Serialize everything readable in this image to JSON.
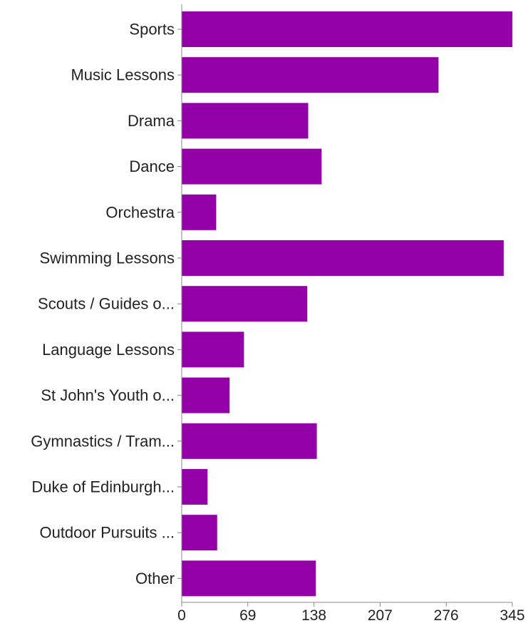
{
  "chart_data": {
    "type": "bar",
    "orientation": "horizontal",
    "categories": [
      "Sports",
      "Music Lessons",
      "Drama",
      "Dance",
      "Orchestra",
      "Swimming Lessons",
      "Scouts / Guides o...",
      "Language Lessons",
      "St John's Youth o...",
      "Gymnastics / Tram...",
      "Duke of Edinburgh...",
      "Outdoor Pursuits ...",
      "Other"
    ],
    "values": [
      345,
      268,
      132,
      146,
      36,
      336,
      131,
      65,
      50,
      141,
      27,
      37,
      140
    ],
    "xlim": [
      0,
      345
    ],
    "x_ticks": [
      "0",
      "69",
      "138",
      "207",
      "276",
      "345"
    ],
    "grid": false,
    "bar_color": "#9400a8",
    "title": "",
    "xlabel": "",
    "ylabel": ""
  }
}
